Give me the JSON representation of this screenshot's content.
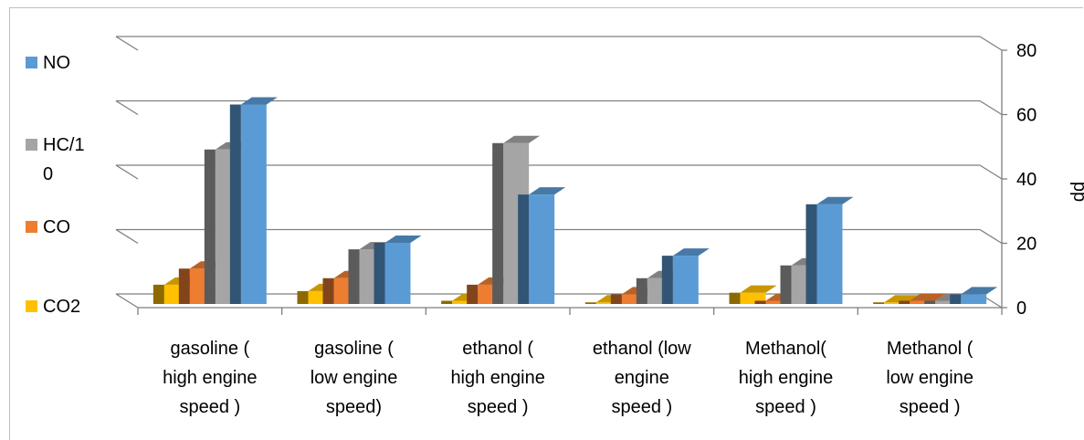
{
  "chart_data": {
    "type": "bar",
    "subtype": "3d-clustered-column",
    "categories": [
      "gasoline ( high engine speed )",
      "gasoline ( low engine speed)",
      "ethanol ( high engine speed )",
      "ethanol (low engine speed )",
      "Methanol( high engine speed )",
      "Methanol ( low engine speed )"
    ],
    "category_lines": [
      [
        "gasoline (",
        "high engine",
        "speed )"
      ],
      [
        "gasoline (",
        "low engine",
        "speed)"
      ],
      [
        "ethanol (",
        "high engine",
        "speed )"
      ],
      [
        "ethanol (low",
        "engine",
        "speed )"
      ],
      [
        "Methanol(",
        "high engine",
        "speed )"
      ],
      [
        "Methanol (",
        "low engine",
        "speed )"
      ]
    ],
    "series": [
      {
        "name": "CO2",
        "legend_lines": [
          "CO2"
        ],
        "color": "#FFC000",
        "values": [
          6,
          4,
          1,
          0.5,
          3.5,
          0.5
        ]
      },
      {
        "name": "CO",
        "legend_lines": [
          "CO"
        ],
        "color": "#ED7D31",
        "values": [
          11,
          8,
          6,
          3,
          1,
          1
        ]
      },
      {
        "name": "HC/10",
        "legend_lines": [
          "HC/1",
          "0"
        ],
        "color": "#A5A5A5",
        "values": [
          48,
          17,
          50,
          8,
          12,
          1
        ]
      },
      {
        "name": "NO",
        "legend_lines": [
          "NO"
        ],
        "color": "#5B9BD5",
        "values": [
          62,
          19,
          34,
          15,
          31,
          3
        ]
      }
    ],
    "ylabel": "pp",
    "ylim": [
      0,
      80
    ],
    "yticks": [
      0,
      20,
      40,
      60,
      80
    ],
    "ytick_labels": [
      "0",
      "20",
      "40",
      "60",
      "80"
    ],
    "grid": true,
    "legend_position": "left"
  }
}
